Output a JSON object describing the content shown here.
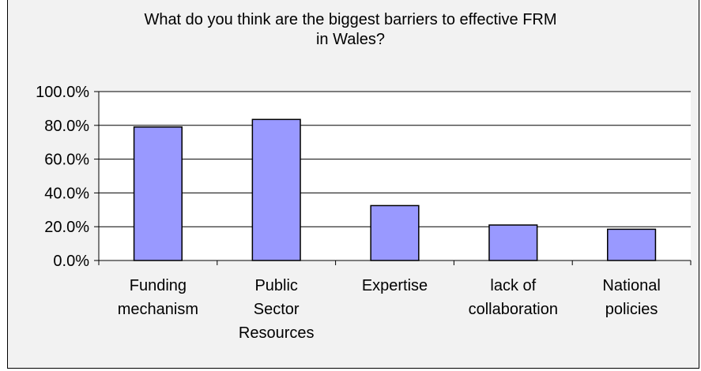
{
  "chart_data": {
    "type": "bar",
    "title": "What do you think are the biggest barriers to effective FRM in Wales?",
    "title_lines": [
      "What do you think are the biggest barriers to effective FRM",
      "in Wales?"
    ],
    "categories": [
      "Funding mechanism",
      "Public Sector Resources",
      "Expertise",
      "lack of collaboration",
      "National policies"
    ],
    "category_label_lines": [
      [
        "Funding",
        "mechanism"
      ],
      [
        "Public",
        "Sector",
        "Resources"
      ],
      [
        "Expertise"
      ],
      [
        "lack of",
        "collaboration"
      ],
      [
        "National",
        "policies"
      ]
    ],
    "values": [
      79.0,
      83.5,
      32.5,
      21.0,
      18.5
    ],
    "ylim": [
      0,
      100
    ],
    "yticks": [
      0,
      20,
      40,
      60,
      80,
      100
    ],
    "ytick_labels": [
      "0.0%",
      "20.0%",
      "40.0%",
      "60.0%",
      "80.0%",
      "100.0%"
    ],
    "xlabel": "",
    "ylabel": "",
    "grid": true,
    "legend": false,
    "bar_color": "#9999ff",
    "plot_background": "#ffffff",
    "chart_background": "#f2f2f2"
  }
}
